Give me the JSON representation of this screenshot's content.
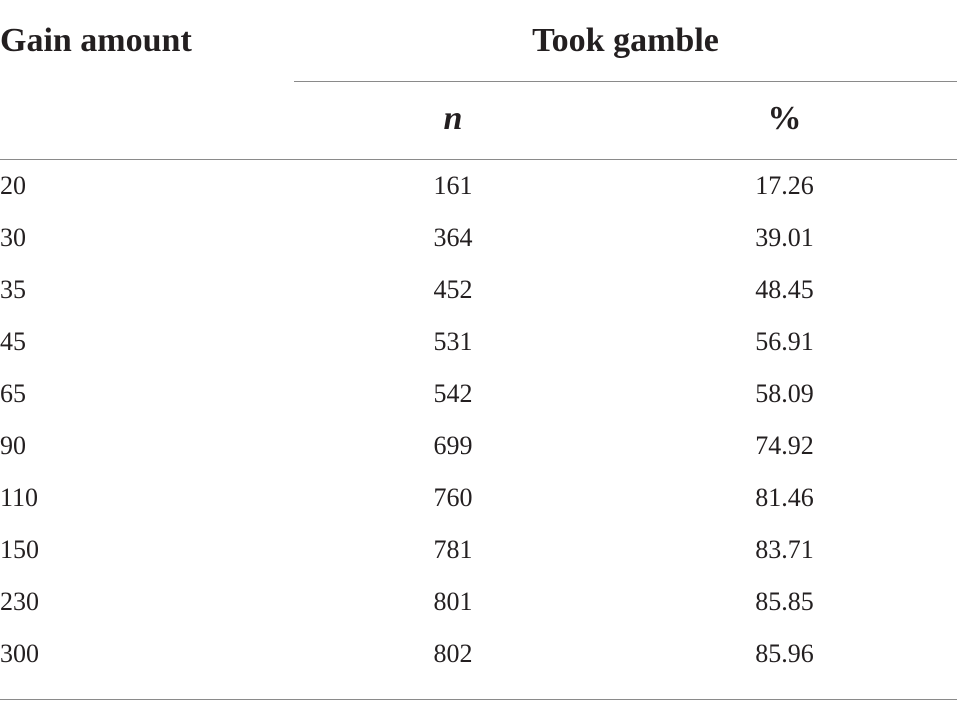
{
  "table": {
    "headers": {
      "gain_amount": "Gain amount",
      "took_gamble": "Took gamble",
      "n": "n",
      "percent": "%"
    },
    "rows": [
      {
        "gain": "20",
        "n": "161",
        "pct": "17.26"
      },
      {
        "gain": "30",
        "n": "364",
        "pct": "39.01"
      },
      {
        "gain": "35",
        "n": "452",
        "pct": "48.45"
      },
      {
        "gain": "45",
        "n": "531",
        "pct": "56.91"
      },
      {
        "gain": "65",
        "n": "542",
        "pct": "58.09"
      },
      {
        "gain": "90",
        "n": "699",
        "pct": "74.92"
      },
      {
        "gain": "110",
        "n": "760",
        "pct": "81.46"
      },
      {
        "gain": "150",
        "n": "781",
        "pct": "83.71"
      },
      {
        "gain": "230",
        "n": "801",
        "pct": "85.85"
      },
      {
        "gain": "300",
        "n": "802",
        "pct": "85.96"
      }
    ]
  }
}
